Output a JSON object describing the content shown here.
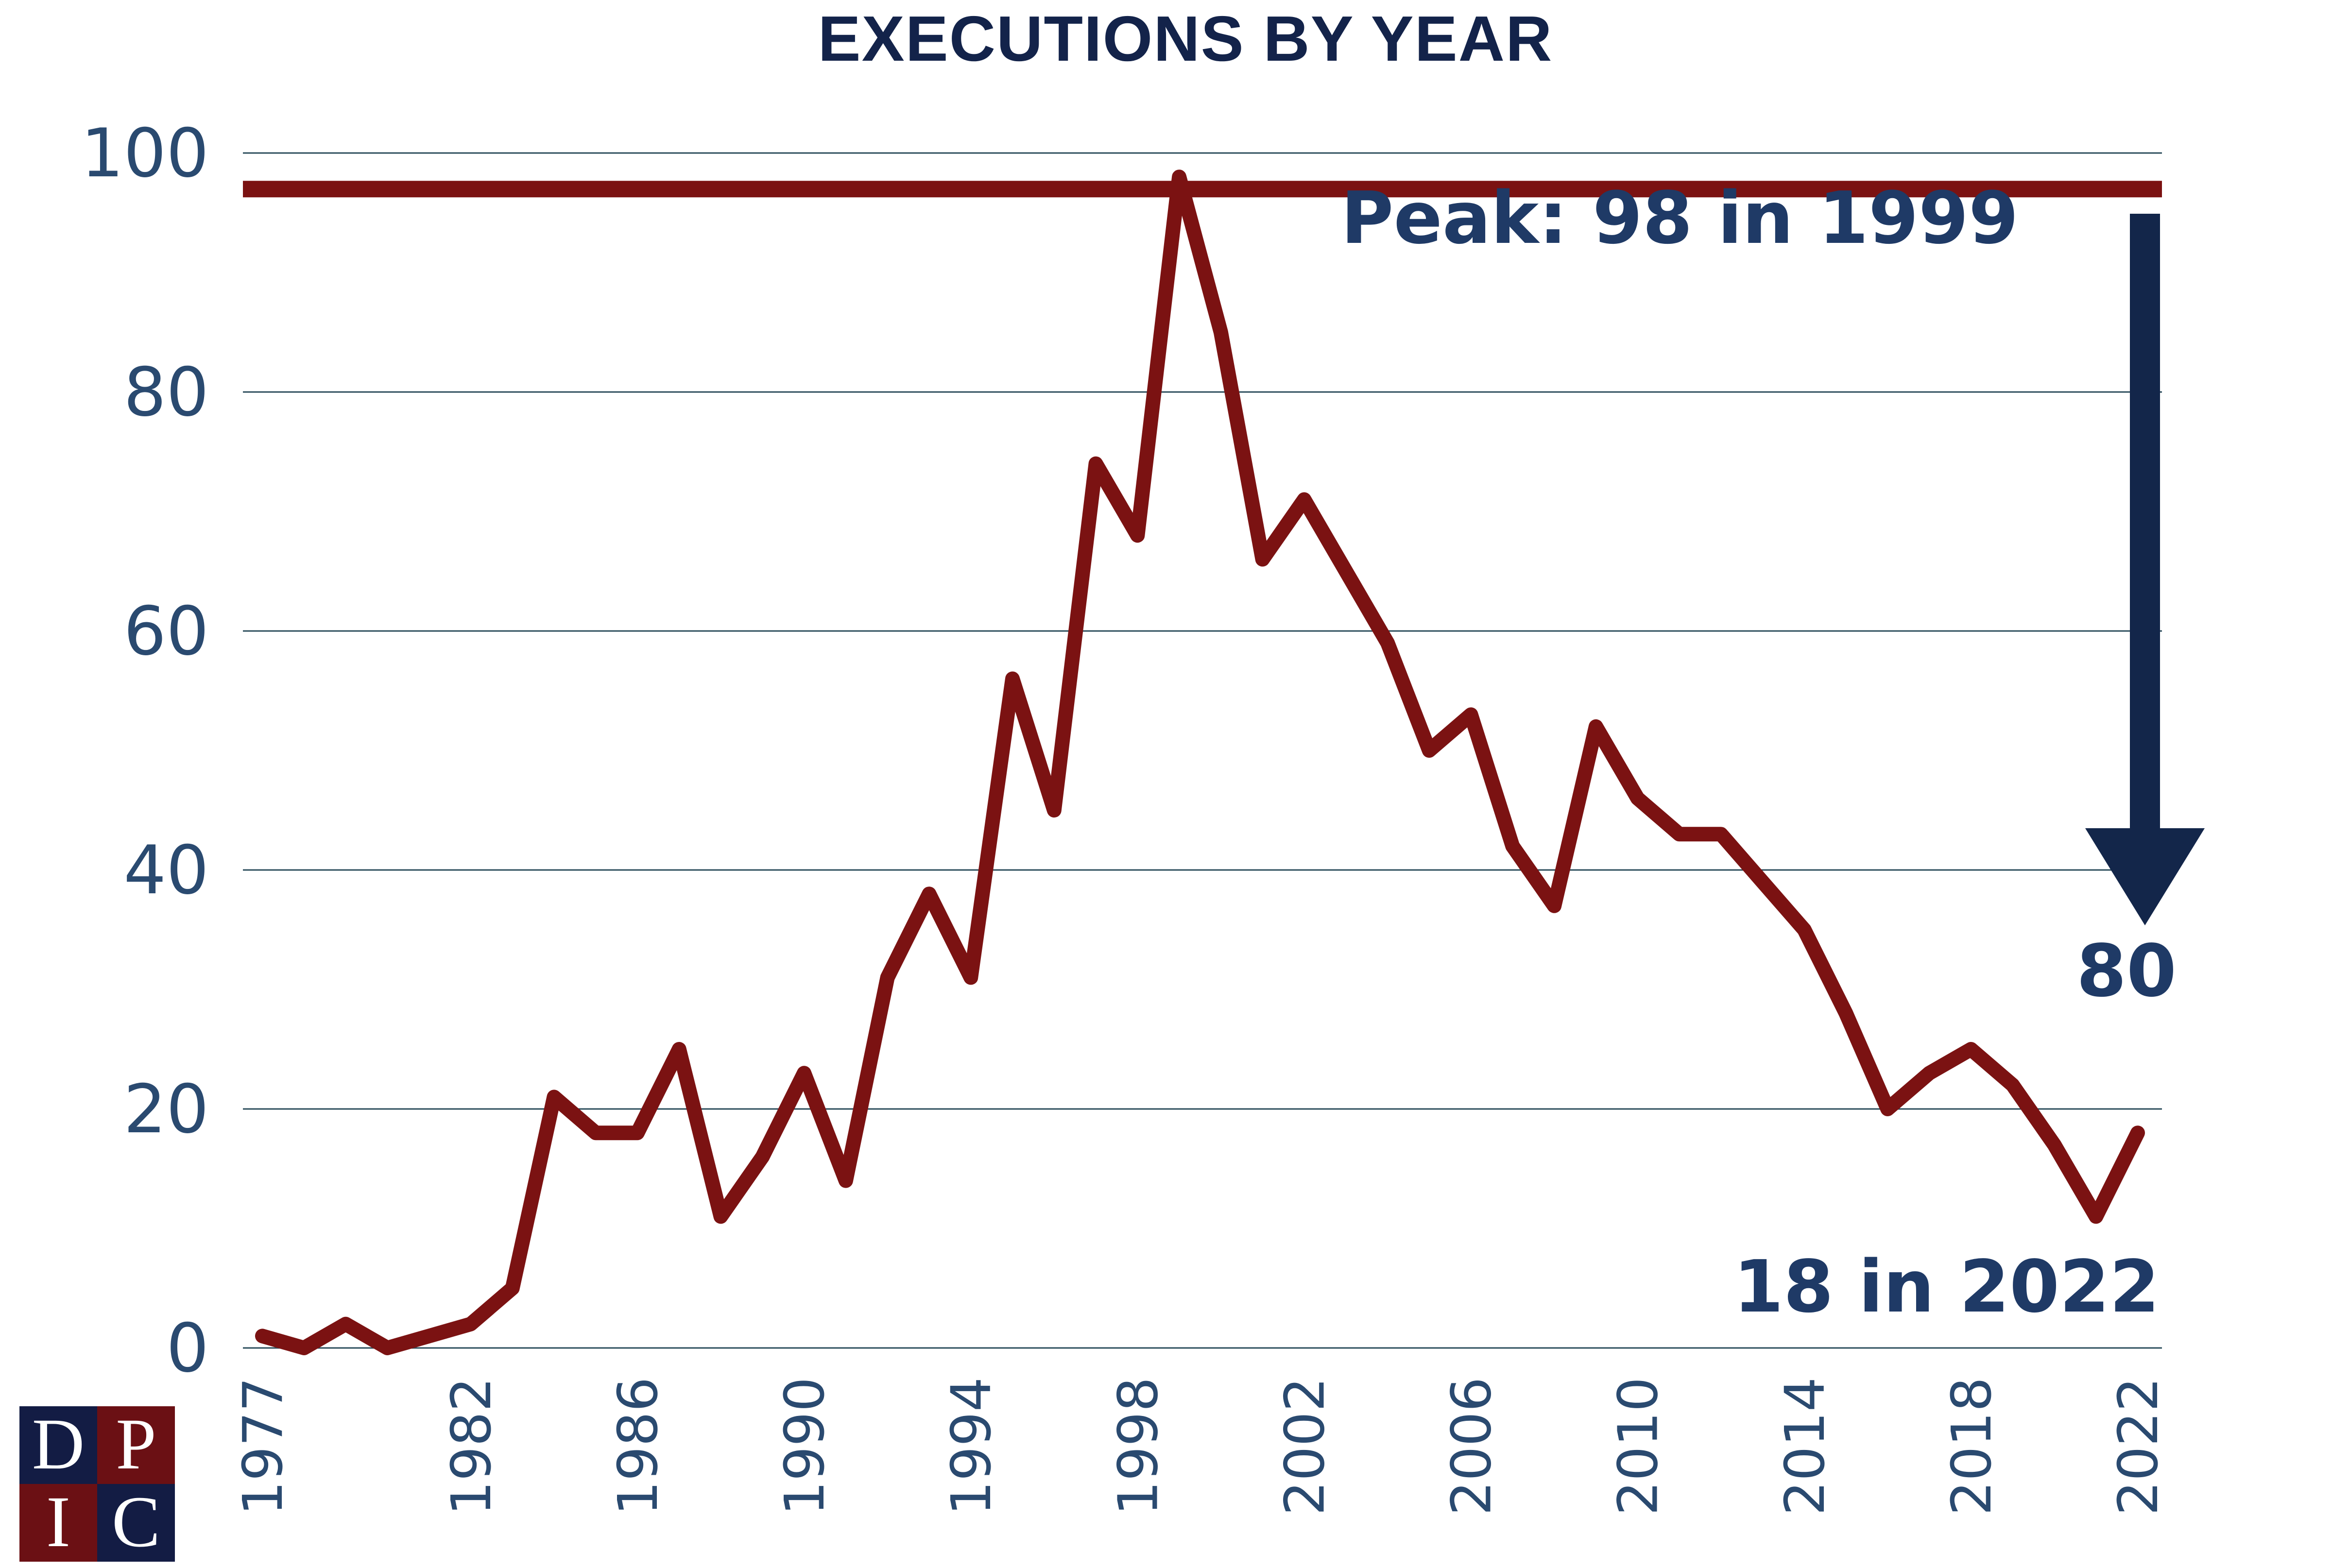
{
  "chart_data": {
    "type": "line",
    "title": "Executions by Year",
    "xlabel": "",
    "ylabel": "",
    "ylim": [
      0,
      100
    ],
    "y_ticks": [
      0,
      20,
      40,
      60,
      80,
      100
    ],
    "x_tick_labels": [
      "1977",
      "1982",
      "1986",
      "1990",
      "1994",
      "1998",
      "2002",
      "2006",
      "2010",
      "2014",
      "2018",
      "2022"
    ],
    "grid": true,
    "series": [
      {
        "color": "#7b1212",
        "x": [
          1977,
          1978,
          1979,
          1980,
          1981,
          1982,
          1983,
          1984,
          1985,
          1986,
          1987,
          1988,
          1989,
          1990,
          1991,
          1992,
          1993,
          1994,
          1995,
          1996,
          1997,
          1998,
          1999,
          2000,
          2001,
          2002,
          2003,
          2004,
          2005,
          2006,
          2007,
          2008,
          2009,
          2010,
          2011,
          2012,
          2013,
          2014,
          2015,
          2016,
          2017,
          2018,
          2019,
          2020,
          2021,
          2022
        ],
        "values": [
          1,
          0,
          2,
          0,
          1,
          2,
          5,
          21,
          18,
          18,
          25,
          11,
          16,
          23,
          14,
          31,
          38,
          31,
          56,
          45,
          74,
          68,
          98,
          85,
          66,
          71,
          65,
          59,
          50,
          53,
          42,
          37,
          52,
          46,
          43,
          43,
          39,
          35,
          28,
          20,
          23,
          25,
          22,
          17,
          11,
          18
        ]
      }
    ],
    "peak_line": {
      "value": 98,
      "color": "#7b1212"
    },
    "annotations": {
      "peak": "Peak: 98 in 1999",
      "latest": "18 in 2022",
      "decline": "80"
    },
    "arrow_color": "#13264a"
  },
  "logo": {
    "letters": [
      "D",
      "P",
      "I",
      "C"
    ],
    "colors": [
      "#131c44",
      "#6b1014"
    ]
  }
}
